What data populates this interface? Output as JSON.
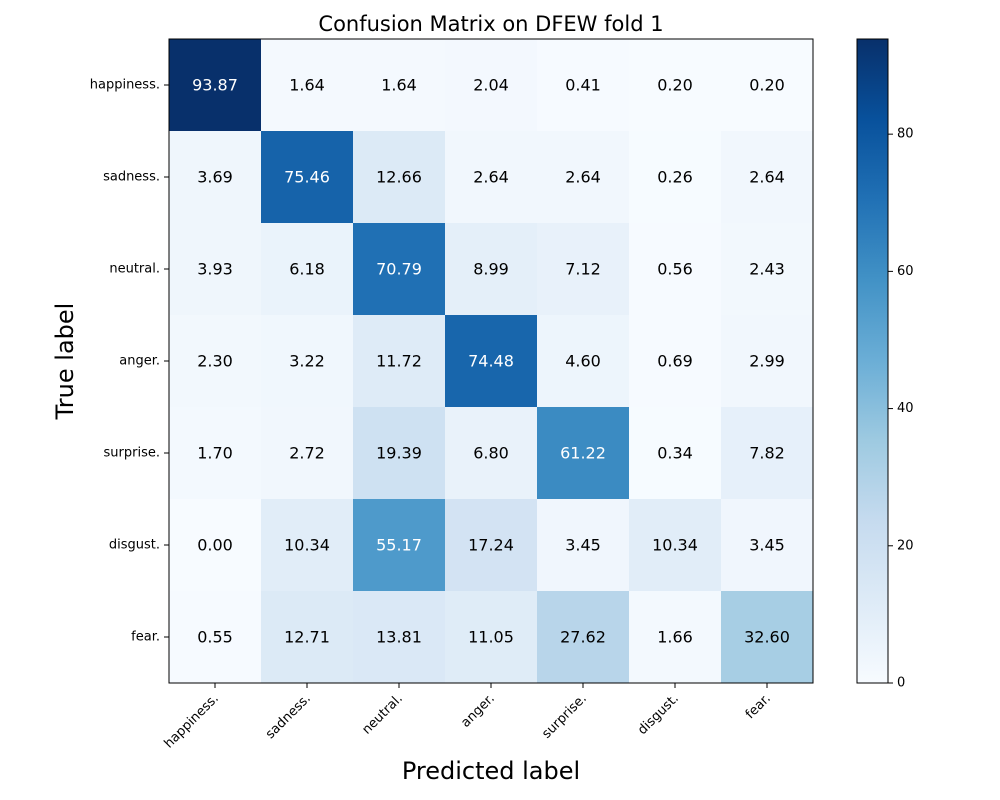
{
  "chart_data": {
    "type": "heatmap",
    "title": "Confusion Matrix on DFEW fold 1",
    "xlabel": "Predicted label",
    "ylabel": "True label",
    "x_categories": [
      "happiness.",
      "sadness.",
      "neutral.",
      "anger.",
      "surprise.",
      "disgust.",
      "fear."
    ],
    "y_categories": [
      "happiness.",
      "sadness.",
      "neutral.",
      "anger.",
      "surprise.",
      "disgust.",
      "fear."
    ],
    "values": [
      [
        93.87,
        1.64,
        1.64,
        2.04,
        0.41,
        0.2,
        0.2
      ],
      [
        3.69,
        75.46,
        12.66,
        2.64,
        2.64,
        0.26,
        2.64
      ],
      [
        3.93,
        6.18,
        70.79,
        8.99,
        7.12,
        0.56,
        2.43
      ],
      [
        2.3,
        3.22,
        11.72,
        74.48,
        4.6,
        0.69,
        2.99
      ],
      [
        1.7,
        2.72,
        19.39,
        6.8,
        61.22,
        0.34,
        7.82
      ],
      [
        0.0,
        10.34,
        55.17,
        17.24,
        3.45,
        10.34,
        3.45
      ],
      [
        0.55,
        12.71,
        13.81,
        11.05,
        27.62,
        1.66,
        32.6
      ]
    ],
    "value_labels": [
      [
        "93.87",
        "1.64",
        "1.64",
        "2.04",
        "0.41",
        "0.20",
        "0.20"
      ],
      [
        "3.69",
        "75.46",
        "12.66",
        "2.64",
        "2.64",
        "0.26",
        "2.64"
      ],
      [
        "3.93",
        "6.18",
        "70.79",
        "8.99",
        "7.12",
        "0.56",
        "2.43"
      ],
      [
        "2.30",
        "3.22",
        "11.72",
        "74.48",
        "4.60",
        "0.69",
        "2.99"
      ],
      [
        "1.70",
        "2.72",
        "19.39",
        "6.80",
        "61.22",
        "0.34",
        "7.82"
      ],
      [
        "0.00",
        "10.34",
        "55.17",
        "17.24",
        "3.45",
        "10.34",
        "3.45"
      ],
      [
        "0.55",
        "12.71",
        "13.81",
        "11.05",
        "27.62",
        "1.66",
        "32.60"
      ]
    ],
    "colormap": "Blues",
    "vmin": 0,
    "vmax": 93.87,
    "colorbar": {
      "ticks": [
        0,
        20,
        40,
        60,
        80
      ],
      "tick_labels": [
        "0",
        "20",
        "40",
        "60",
        "80"
      ]
    },
    "x_tick_rotation": 45,
    "grid": false
  }
}
